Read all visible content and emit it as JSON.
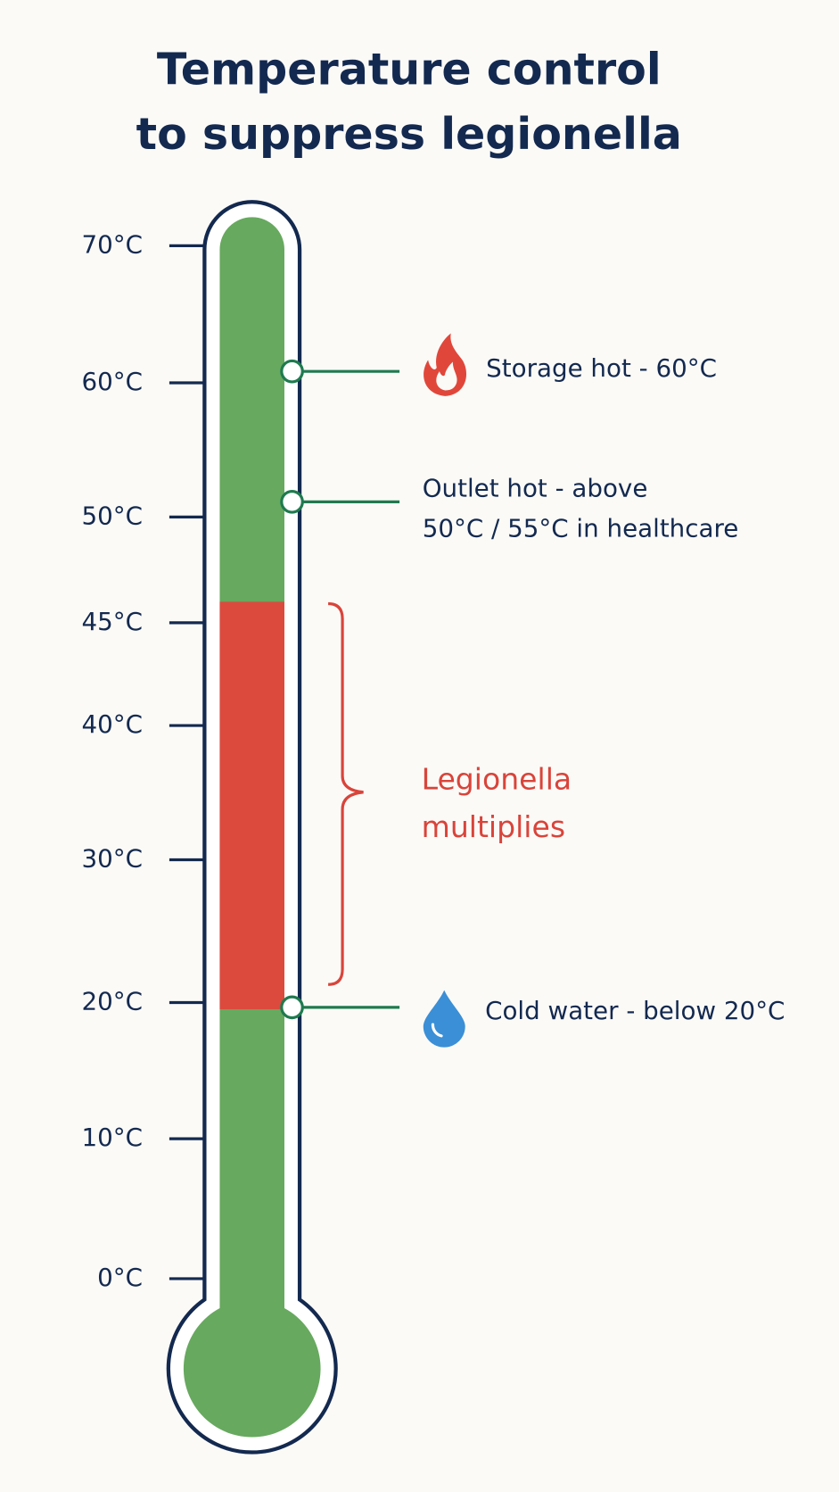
{
  "title_lines": [
    "Temperature control",
    "to suppress legionella"
  ],
  "scale": {
    "ticks": [
      "70°C",
      "60°C",
      "50°C",
      "45°C",
      "40°C",
      "30°C",
      "20°C",
      "10°C",
      "0°C"
    ]
  },
  "markers": [
    {
      "label_lines": [
        "Storage hot - 60°C"
      ]
    },
    {
      "label_lines": [
        "Outlet hot - above",
        "50°C / 55°C in healthcare"
      ]
    },
    {
      "label_lines": [
        "Cold water - below 20°C"
      ]
    }
  ],
  "zone": {
    "label_lines": [
      "Legionella",
      "multiplies"
    ]
  }
}
